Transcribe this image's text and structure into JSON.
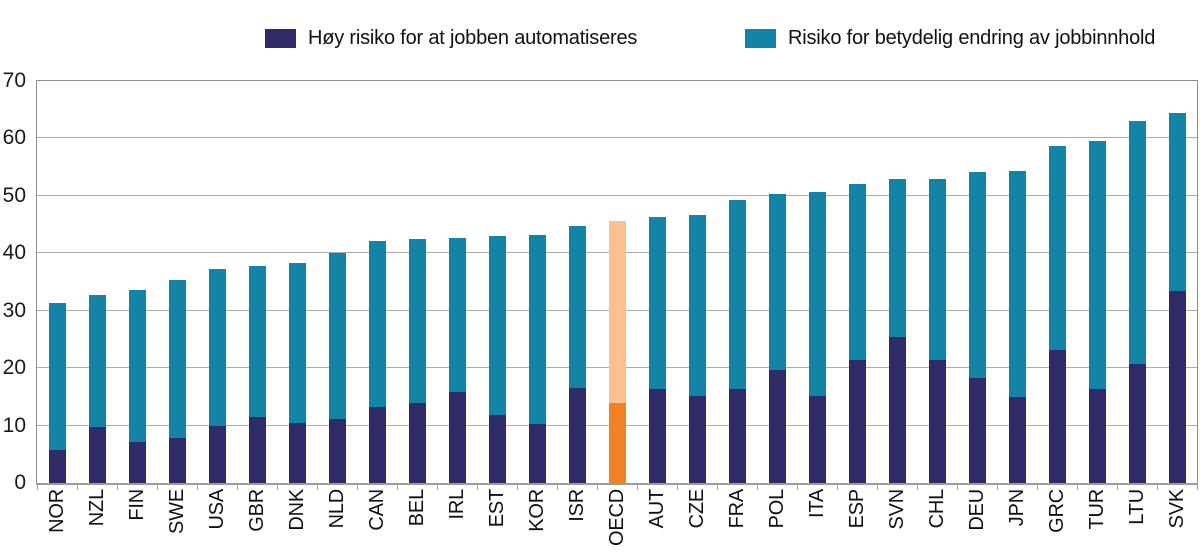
{
  "legend": {
    "high_risk_label": "Høy risiko for at jobben automatiseres",
    "change_risk_label": "Risiko for betydelig endring av jobbinnhold"
  },
  "chart_data": {
    "type": "bar",
    "stacked": true,
    "title": "",
    "xlabel": "",
    "ylabel": "",
    "ylim": [
      0,
      70
    ],
    "yticks": [
      0,
      10,
      20,
      30,
      40,
      50,
      60,
      70
    ],
    "grid": true,
    "legend_position": "top",
    "categories": [
      "NOR",
      "NZL",
      "FIN",
      "SWE",
      "USA",
      "GBR",
      "DNK",
      "NLD",
      "CAN",
      "BEL",
      "IRL",
      "EST",
      "KOR",
      "ISR",
      "OECD",
      "AUT",
      "CZE",
      "FRA",
      "POL",
      "ITA",
      "ESP",
      "SVN",
      "CHL",
      "DEU",
      "JPN",
      "GRC",
      "TUR",
      "LTU",
      "SVK"
    ],
    "series": [
      {
        "name": "Høy risiko for at jobben automatiseres",
        "color": "#2f2b66",
        "values": [
          5.7,
          9.8,
          7.2,
          7.8,
          10.0,
          11.5,
          10.5,
          11.2,
          13.3,
          13.9,
          15.9,
          11.9,
          10.3,
          16.6,
          13.9,
          16.4,
          15.2,
          16.4,
          19.6,
          15.1,
          21.5,
          25.5,
          21.5,
          18.2,
          14.9,
          23.1,
          16.3,
          20.8,
          33.5
        ]
      },
      {
        "name": "Risiko for betydelig endring av jobbinnhold",
        "color": "#1484a6",
        "values": [
          25.7,
          23.0,
          26.4,
          27.6,
          27.2,
          26.2,
          27.8,
          28.8,
          28.8,
          28.6,
          26.8,
          31.1,
          32.9,
          28.2,
          31.7,
          29.9,
          31.5,
          32.8,
          30.8,
          35.6,
          30.5,
          27.5,
          31.5,
          36.0,
          39.4,
          35.6,
          43.3,
          42.2,
          30.9
        ]
      }
    ],
    "highlight": {
      "category": "OECD",
      "high_color": "#f28124",
      "change_color": "#fbc091"
    },
    "colors": {
      "gridline": "#ababab",
      "axis": "#9c9c9c",
      "text": "#111111"
    }
  }
}
